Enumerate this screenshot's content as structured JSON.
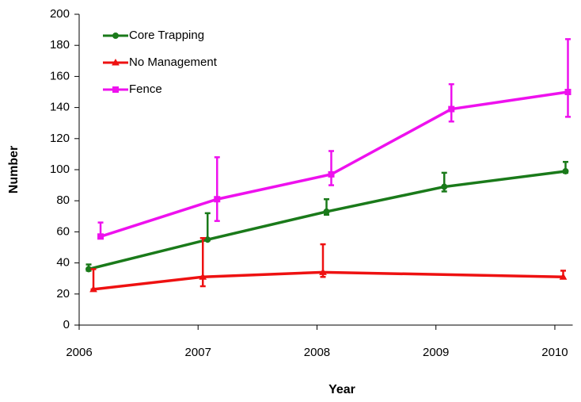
{
  "chart_data": {
    "type": "line",
    "x_label": "Year",
    "y_label": "Number",
    "xlim": [
      2006,
      2010.15
    ],
    "xticks": [
      2006,
      2007,
      2008,
      2009,
      2010
    ],
    "ylim": [
      0,
      200
    ],
    "yticks": [
      0,
      20,
      40,
      60,
      80,
      100,
      120,
      140,
      160,
      180,
      200
    ],
    "legend": "upper left",
    "series": [
      {
        "name": "Core Trapping",
        "color": "#1a7a1a",
        "marker": "circle",
        "x": [
          2006.08,
          2007.08,
          2008.08,
          2009.07,
          2010.09
        ],
        "values": [
          36,
          55,
          73,
          89,
          99
        ],
        "error_low": [
          1,
          0,
          2,
          3,
          1
        ],
        "error_high": [
          3,
          17,
          8,
          9,
          6
        ]
      },
      {
        "name": "No Management",
        "color": "#ee1111",
        "marker": "triangle",
        "x": [
          2006.12,
          2007.04,
          2008.05,
          2010.07
        ],
        "values": [
          23,
          31,
          34,
          31
        ],
        "error_low": [
          0,
          6,
          3,
          1
        ],
        "error_high": [
          13,
          25,
          18,
          4
        ]
      },
      {
        "name": "Fence",
        "color": "#ee11ee",
        "marker": "square",
        "x": [
          2006.18,
          2007.16,
          2008.12,
          2009.13,
          2010.11
        ],
        "values": [
          57,
          81,
          97,
          139,
          150
        ],
        "error_low": [
          1,
          14,
          7,
          8,
          16
        ],
        "error_high": [
          9,
          27,
          15,
          16,
          34
        ]
      }
    ]
  }
}
